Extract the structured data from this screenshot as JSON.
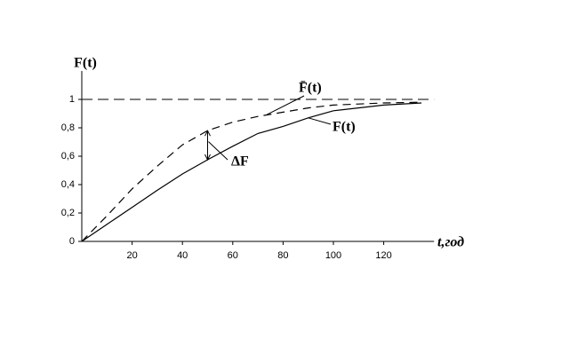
{
  "chart_data": {
    "type": "line",
    "y_label": "F(t)",
    "x_label": "t,год",
    "x": [
      0,
      10,
      20,
      30,
      40,
      50,
      60,
      70,
      80,
      90,
      100,
      120,
      135
    ],
    "series": [
      {
        "name": "F̄(t)",
        "color": "#000",
        "dash": true,
        "values": [
          0,
          0.18,
          0.37,
          0.53,
          0.68,
          0.78,
          0.84,
          0.88,
          0.91,
          0.94,
          0.96,
          0.975,
          0.98
        ]
      },
      {
        "name": "F(t)",
        "color": "#000",
        "dash": false,
        "values": [
          0,
          0.12,
          0.24,
          0.36,
          0.475,
          0.575,
          0.67,
          0.76,
          0.81,
          0.87,
          0.92,
          0.96,
          0.975
        ]
      }
    ],
    "reference_line": 1,
    "delta_label": "ΔF",
    "xlim": [
      0,
      140
    ],
    "ylim": [
      0,
      1.2
    ],
    "xticks": [
      20,
      40,
      60,
      80,
      100,
      120
    ],
    "yticks": [
      0,
      {
        "value": 0.2,
        "label": "0,2"
      },
      {
        "value": 0.4,
        "label": "0,4"
      },
      {
        "value": 0.6,
        "label": "0,6"
      },
      {
        "value": 0.8,
        "label": "0,8"
      },
      1
    ]
  }
}
